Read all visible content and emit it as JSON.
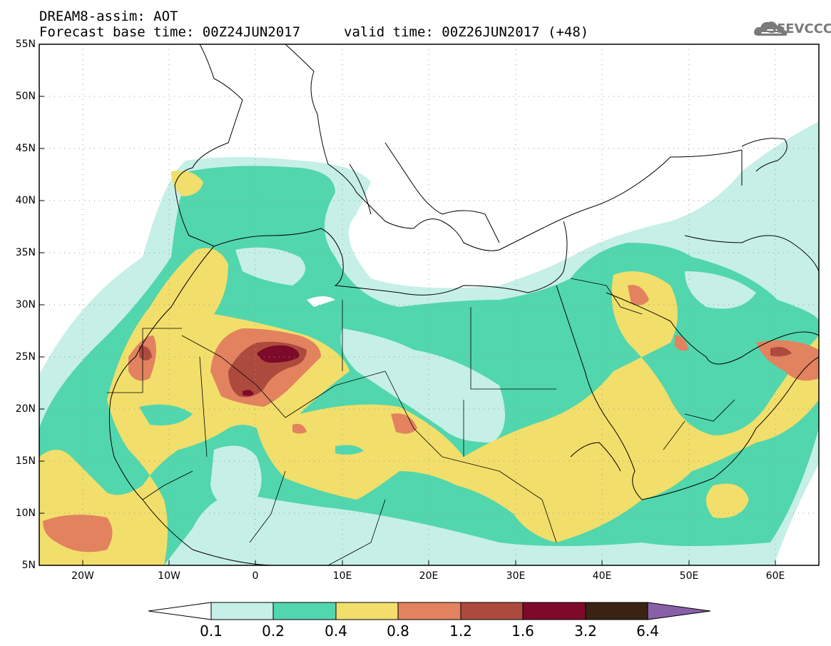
{
  "header": {
    "title": "DREAM8-assim: AOT",
    "base_label": "Forecast base time: ",
    "base_time": "00Z24JUN2017",
    "valid_label": "valid time: ",
    "valid_time": "00Z26JUN2017",
    "lead": "(+48)"
  },
  "logo": {
    "text": "SEEVCCC",
    "icon": "cloud-icon"
  },
  "map": {
    "variable": "AOT",
    "lon_range": [
      -25,
      65
    ],
    "lat_range": [
      5,
      55
    ],
    "lat_ticks": [
      "55N",
      "50N",
      "45N",
      "40N",
      "35N",
      "30N",
      "25N",
      "20N",
      "15N",
      "10N",
      "5N"
    ],
    "lon_ticks": [
      "20W",
      "10W",
      "0",
      "10E",
      "20E",
      "30E",
      "40E",
      "50E",
      "60E"
    ]
  },
  "colorbar": {
    "levels": [
      "0.1",
      "0.2",
      "0.4",
      "0.8",
      "1.2",
      "1.6",
      "3.2",
      "6.4"
    ],
    "colors": [
      "#ffffff",
      "#c6efe7",
      "#52d6ad",
      "#f2de6b",
      "#e2825f",
      "#ad4a3e",
      "#7d0a2a",
      "#3a2313",
      "#8860a8"
    ]
  }
}
